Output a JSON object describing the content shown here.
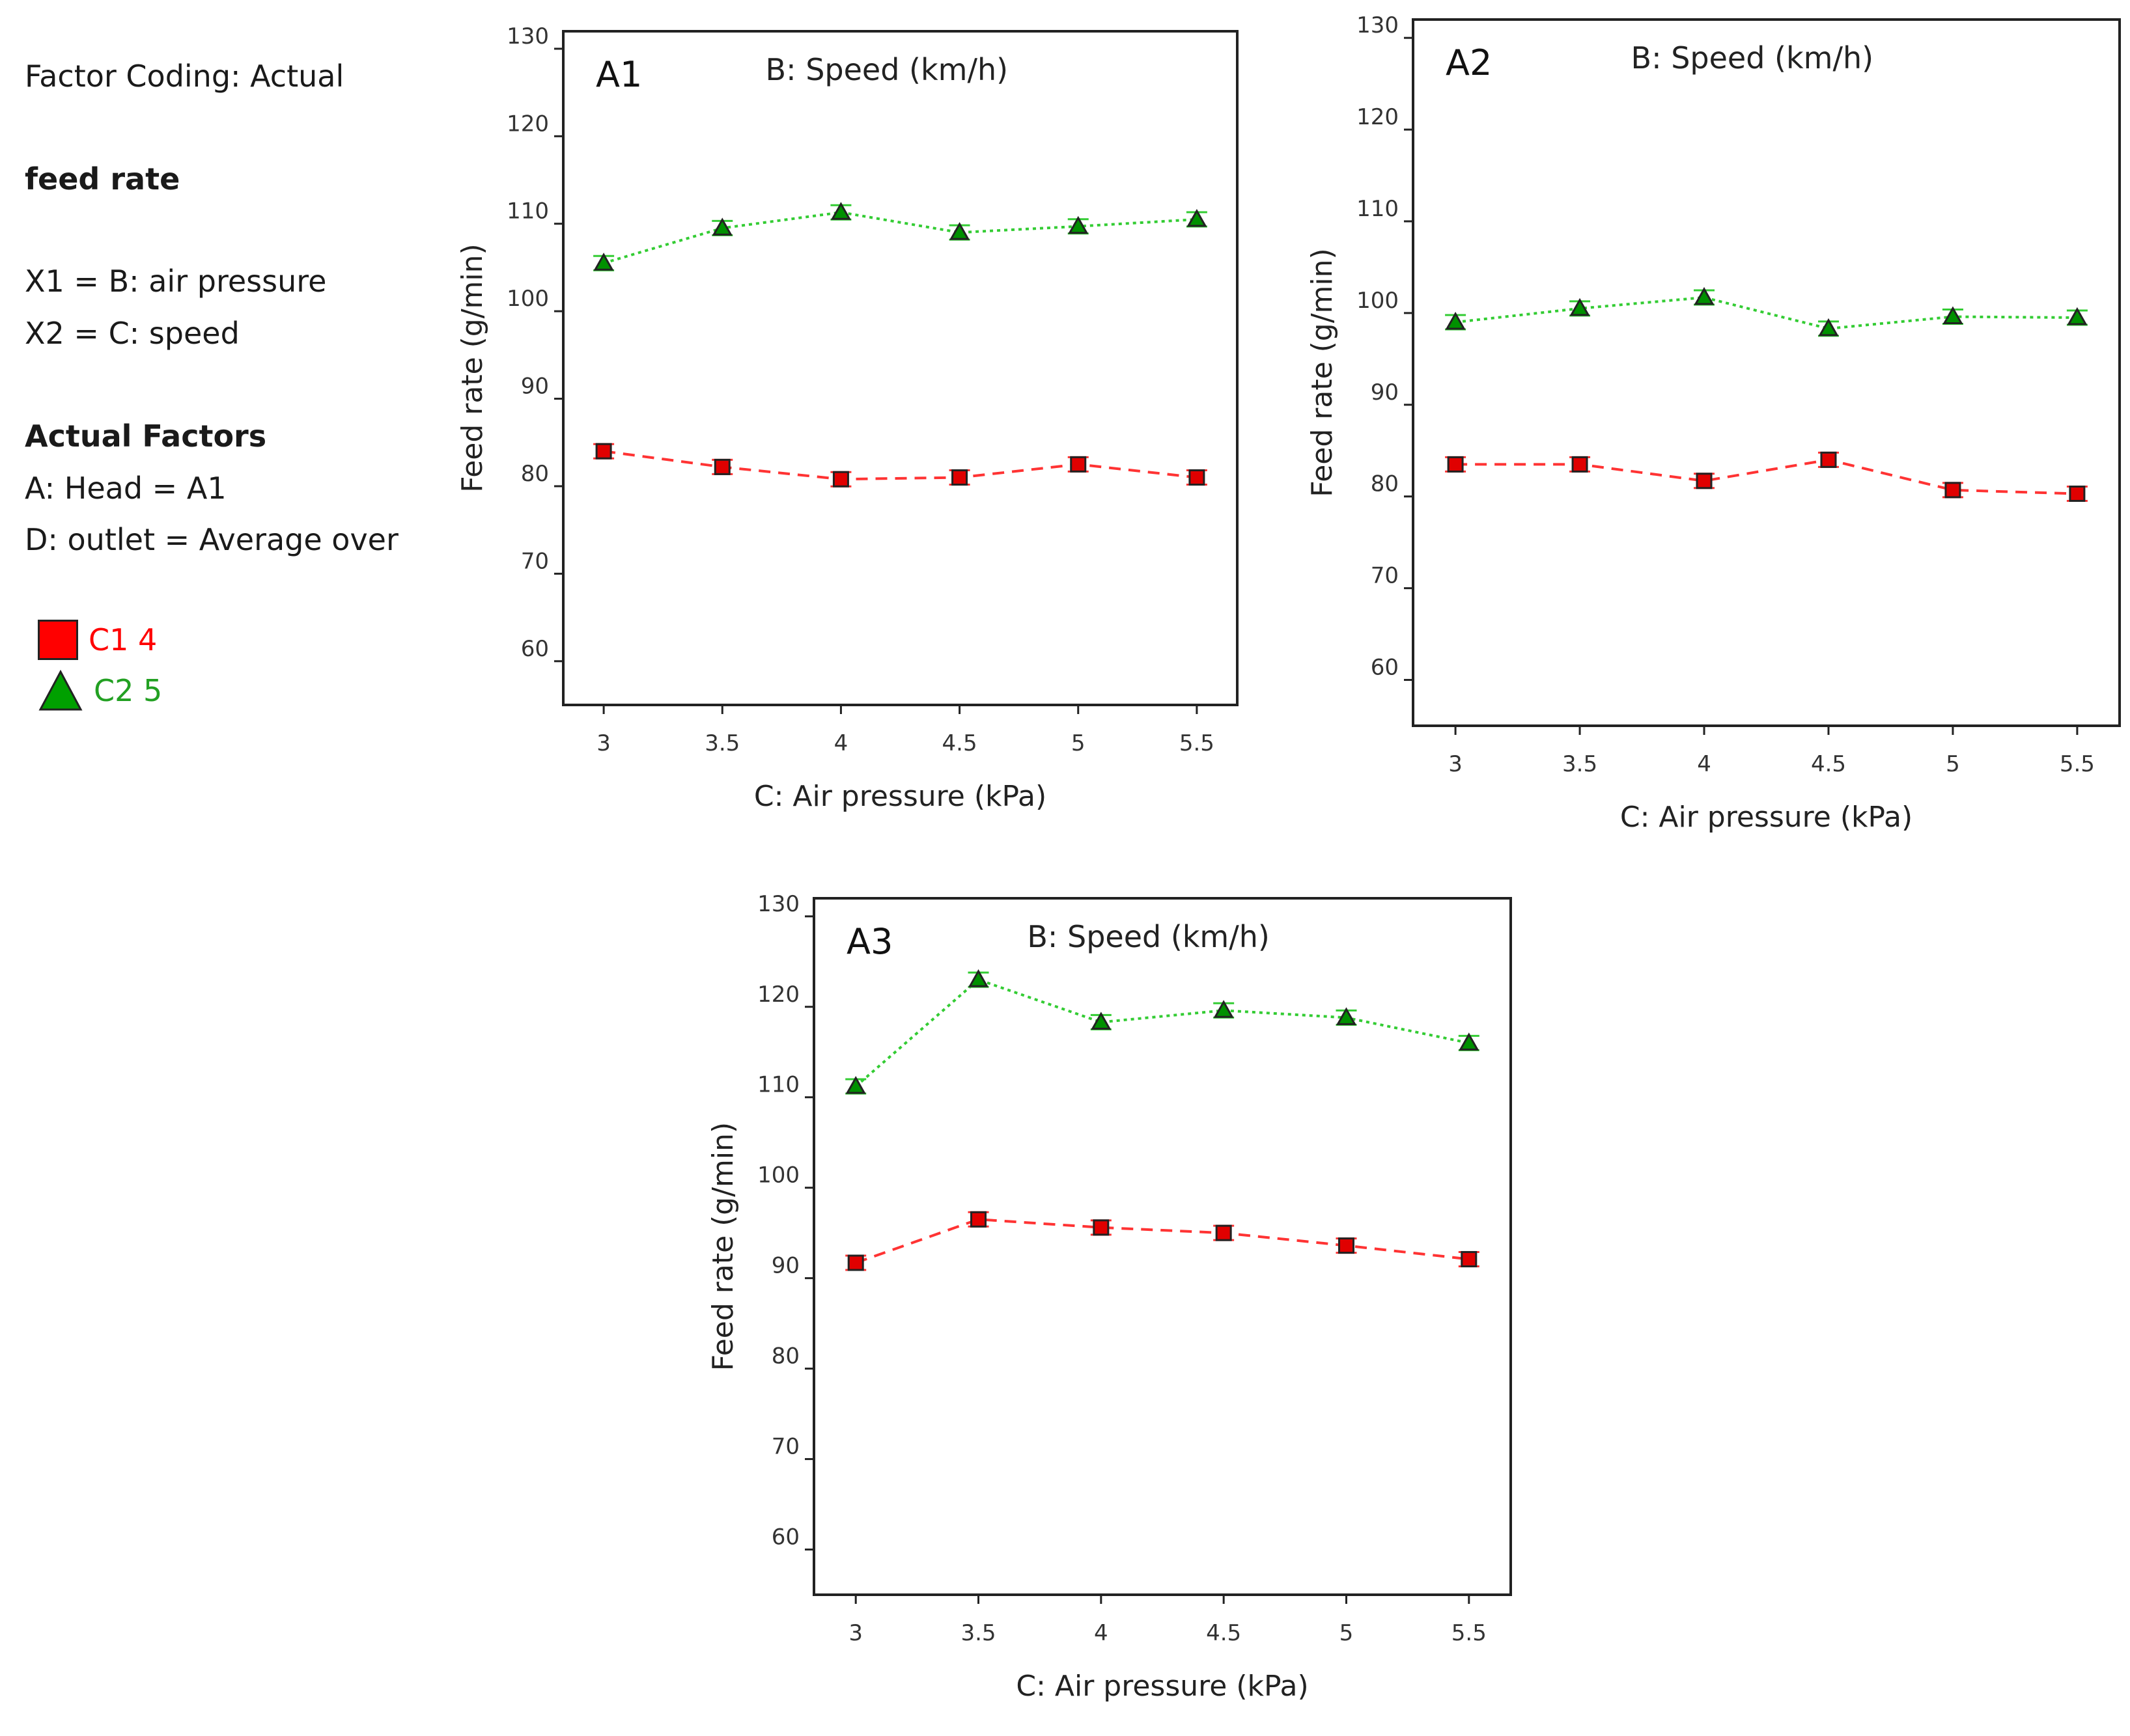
{
  "legend_panel": {
    "factor_coding": "Factor Coding: Actual",
    "response": "feed rate",
    "x1": "X1 = B: air pressure",
    "x2": "X2 = C: speed",
    "actual_factors_heading": "Actual Factors",
    "factor_a": "A: Head = A1",
    "factor_d": "D: outlet  = Average over",
    "series": [
      {
        "label": "C1 4",
        "color": "#ff0000",
        "marker": "square"
      },
      {
        "label": "C2 5",
        "color": "#00a000",
        "marker": "triangle"
      }
    ]
  },
  "chart_data": [
    {
      "type": "line",
      "panel_label": "A1",
      "title": "B: Speed (km/h)",
      "xlabel": "C: Air pressure (kPa)",
      "ylabel": "Feed rate (g/min)",
      "x": [
        3,
        3.5,
        4,
        4.5,
        5,
        5.5
      ],
      "x_tick_labels": [
        "3",
        "3.5",
        "4",
        "4.5",
        "5",
        "5.5"
      ],
      "y_ticks": [
        60,
        70,
        80,
        90,
        100,
        110,
        120,
        130
      ],
      "ylim": [
        55,
        132
      ],
      "series": [
        {
          "name": "C1 4",
          "color": "#ff3333",
          "marker": "square",
          "line": "dashed",
          "values": [
            84,
            82.2,
            80.8,
            81,
            82.5,
            81
          ]
        },
        {
          "name": "C2 5",
          "color": "#33cc33",
          "marker": "triangle",
          "line": "dotted",
          "values": [
            105.5,
            109.5,
            111.3,
            109,
            109.7,
            110.5
          ]
        }
      ]
    },
    {
      "type": "line",
      "panel_label": "A2",
      "title": "B: Speed (km/h)",
      "xlabel": "C: Air pressure (kPa)",
      "ylabel": "Feed rate (g/min)",
      "x": [
        3,
        3.5,
        4,
        4.5,
        5,
        5.5
      ],
      "x_tick_labels": [
        "3",
        "3.5",
        "4",
        "4.5",
        "5",
        "5.5"
      ],
      "y_ticks": [
        60,
        70,
        80,
        90,
        100,
        110,
        120,
        130
      ],
      "ylim": [
        55,
        132
      ],
      "series": [
        {
          "name": "C1 4",
          "color": "#ff3333",
          "marker": "square",
          "line": "dashed",
          "values": [
            83.5,
            83.5,
            81.7,
            84,
            80.7,
            80.3
          ]
        },
        {
          "name": "C2 5",
          "color": "#33cc33",
          "marker": "triangle",
          "line": "dotted",
          "values": [
            99,
            100.5,
            101.7,
            98.3,
            99.6,
            99.5
          ]
        }
      ]
    },
    {
      "type": "line",
      "panel_label": "A3",
      "title": "B: Speed (km/h)",
      "xlabel": "C: Air pressure (kPa)",
      "ylabel": "Feed rate (g/min)",
      "x": [
        3,
        3.5,
        4,
        4.5,
        5,
        5.5
      ],
      "x_tick_labels": [
        "3",
        "3.5",
        "4",
        "4.5",
        "5",
        "5.5"
      ],
      "y_ticks": [
        60,
        70,
        80,
        90,
        100,
        110,
        120,
        130
      ],
      "ylim": [
        55,
        132
      ],
      "series": [
        {
          "name": "C1 4",
          "color": "#ff3333",
          "marker": "square",
          "line": "dashed",
          "values": [
            91.7,
            96.5,
            95.6,
            95,
            93.6,
            92.1
          ]
        },
        {
          "name": "C2 5",
          "color": "#33cc33",
          "marker": "triangle",
          "line": "dotted",
          "values": [
            111.2,
            123,
            118.3,
            119.6,
            118.8,
            116
          ]
        }
      ]
    }
  ]
}
